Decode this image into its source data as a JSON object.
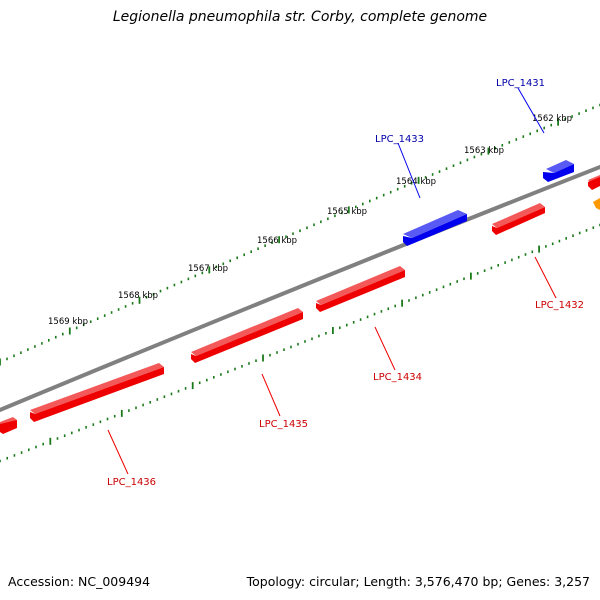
{
  "title": "Legionella pneumophila str. Corby, complete genome",
  "footer": {
    "accession": "Accession: NC_009494",
    "stats": "Topology: circular; Length: 3,576,470 bp; Genes: 3,257"
  },
  "scale": {
    "labels": [
      "1562 kbp",
      "1563 kbp",
      "1564 kbp",
      "1565 kbp",
      "1566 kbp",
      "1567 kbp",
      "1568 kbp",
      "1569 kbp"
    ],
    "tick_color": "#1a7a1a"
  },
  "colors": {
    "forward_strand": "#0000ee",
    "reverse_strand": "#ee0000",
    "other_feature": "#ff9900",
    "backbone": "#808080"
  },
  "genes": [
    {
      "name": "LPC_1431",
      "strand": "forward"
    },
    {
      "name": "LPC_1433",
      "strand": "forward"
    },
    {
      "name": "LPC_1432",
      "strand": "reverse"
    },
    {
      "name": "LPC_1434",
      "strand": "reverse"
    },
    {
      "name": "LPC_1435",
      "strand": "reverse"
    },
    {
      "name": "LPC_1436",
      "strand": "reverse"
    }
  ]
}
